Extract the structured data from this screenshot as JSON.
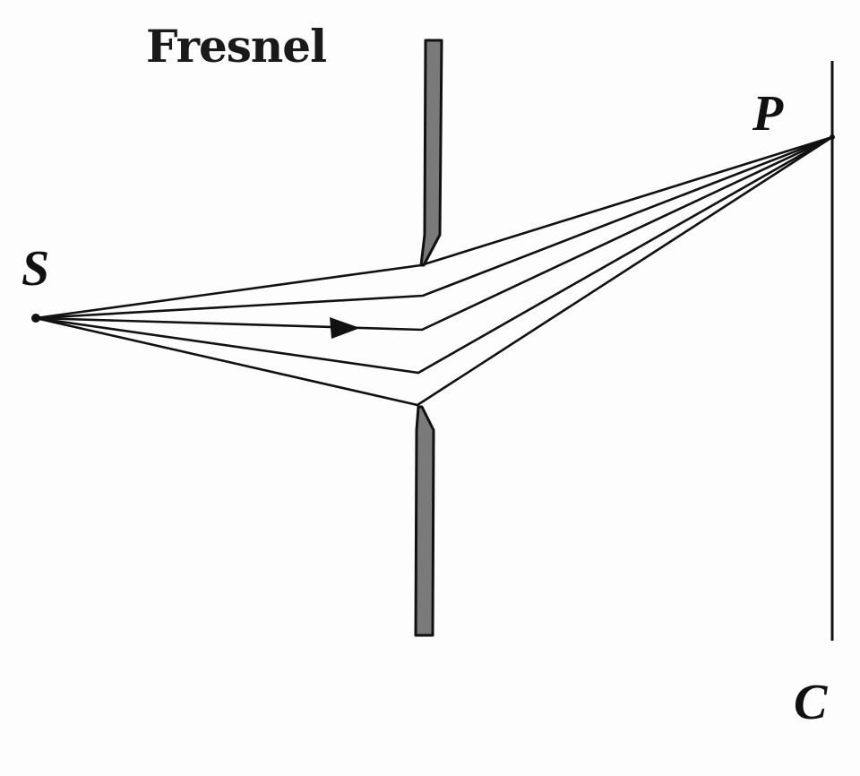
{
  "title": "Fresnel",
  "labels": {
    "source": "S",
    "point": "P",
    "screen": "C"
  },
  "colors": {
    "ink": "#111111",
    "barrier": "#7a7a7a",
    "background": "#fdfdfd"
  }
}
